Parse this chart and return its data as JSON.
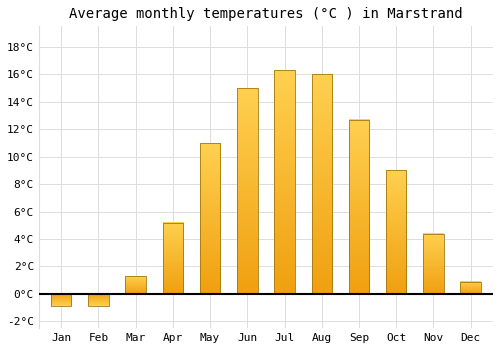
{
  "title": "Average monthly temperatures (°C ) in Marstrand",
  "months": [
    "Jan",
    "Feb",
    "Mar",
    "Apr",
    "May",
    "Jun",
    "Jul",
    "Aug",
    "Sep",
    "Oct",
    "Nov",
    "Dec"
  ],
  "temperatures": [
    -0.9,
    -0.9,
    1.3,
    5.2,
    11.0,
    15.0,
    16.3,
    16.0,
    12.7,
    9.0,
    4.4,
    0.9
  ],
  "bar_color_top": "#FFD050",
  "bar_color_bottom": "#F0A010",
  "bar_edge_color": "#A07810",
  "bar_edge_width": 0.6,
  "background_color": "#FFFFFF",
  "ylim": [
    -2.5,
    19.5
  ],
  "yticks": [
    -2,
    0,
    2,
    4,
    6,
    8,
    10,
    12,
    14,
    16,
    18
  ],
  "grid_color": "#DDDDDD",
  "title_fontsize": 10,
  "tick_fontsize": 8,
  "font_family": "monospace"
}
